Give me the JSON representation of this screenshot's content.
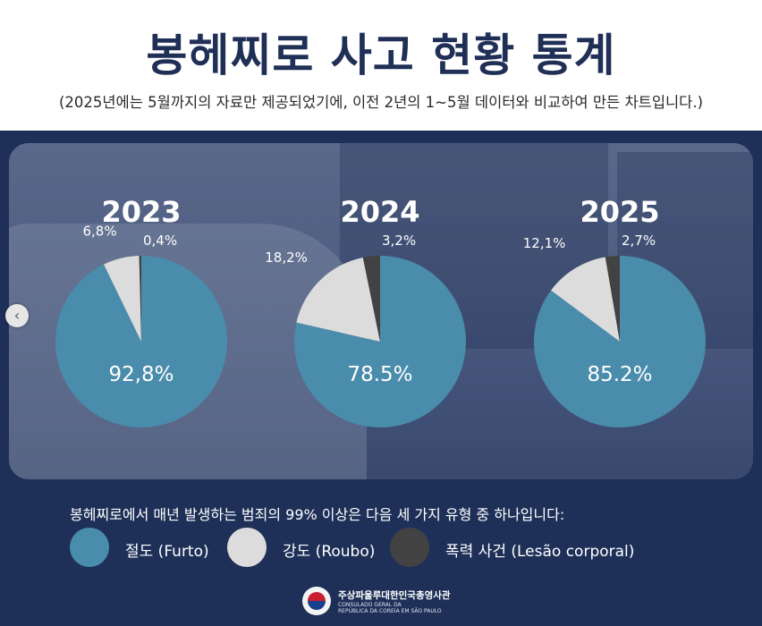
{
  "header": {
    "title": "봉헤찌로 사고 현황 통계",
    "subtitle": "(2025년에는 5월까지의 자료만 제공되었기에, 이전 2년의 1~5월 데이터와 비교하여 만든 차트입니다.)"
  },
  "colors": {
    "furto": "#4a8cab",
    "roubo": "#dcdcdc",
    "lesao": "#424242",
    "panel": "#1e3058",
    "title": "#1f2f56"
  },
  "chart_data": [
    {
      "type": "pie",
      "title": "2023",
      "slices": [
        {
          "label": "절도 (Furto)",
          "value": 92.8,
          "text": "92,8%"
        },
        {
          "label": "강도 (Roubo)",
          "value": 6.8,
          "text": "6,8%"
        },
        {
          "label": "폭력 사건 (Lesão corporal)",
          "value": 0.4,
          "text": "0,4%"
        }
      ]
    },
    {
      "type": "pie",
      "title": "2024",
      "slices": [
        {
          "label": "절도 (Furto)",
          "value": 78.5,
          "text": "78.5%"
        },
        {
          "label": "강도 (Roubo)",
          "value": 18.2,
          "text": "18,2%"
        },
        {
          "label": "폭력 사건 (Lesão corporal)",
          "value": 3.2,
          "text": "3,2%"
        }
      ]
    },
    {
      "type": "pie",
      "title": "2025",
      "slices": [
        {
          "label": "절도 (Furto)",
          "value": 85.2,
          "text": "85.2%"
        },
        {
          "label": "강도 (Roubo)",
          "value": 12.1,
          "text": "12,1%"
        },
        {
          "label": "폭력 사건 (Lesão corporal)",
          "value": 2.7,
          "text": "2,7%"
        }
      ]
    }
  ],
  "nav": {
    "prev_icon": "‹"
  },
  "note": "봉헤찌로에서 매년 발생하는 범죄의 99% 이상은 다음 세 가지 유형 중 하나입니다:",
  "legend": [
    {
      "label": "절도 (Furto)"
    },
    {
      "label": "강도 (Roubo)"
    },
    {
      "label": "폭력 사건 (Lesão corporal)"
    }
  ],
  "footer": {
    "org_ko": "주상파울루대한민국총영사관",
    "org_pt": "CONSULADO GERAL DA\nREPÚBLICA DA COREIA EM SÃO PAULO"
  }
}
